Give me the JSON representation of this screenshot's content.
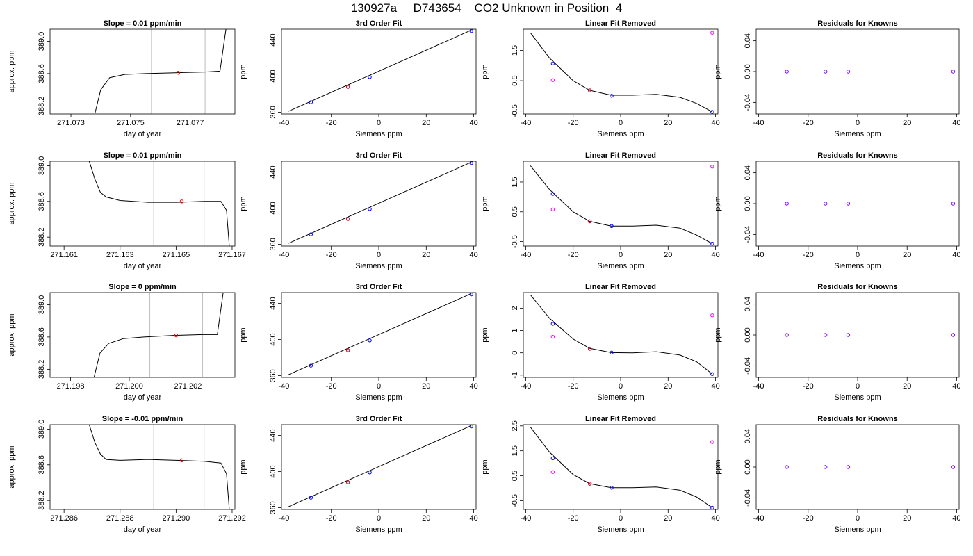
{
  "page_title": "130927a     D743654    CO2 Unknown in Position  4",
  "colors": {
    "trace": "#000000",
    "red_point": "#ff0000",
    "blue_point": "#0000ff",
    "magenta_point": "#ff00ff",
    "purple_point": "#7a00ff",
    "window_line": "#bebebe"
  },
  "chart_data": [
    {
      "type": "line",
      "title": "Slope =  0.01  ppm/min",
      "xlabel": "day of year",
      "ylabel": "approx. ppm",
      "xlim": [
        271.0723,
        271.0785
      ],
      "ylim": [
        388.1,
        389.15
      ],
      "xticks": [
        "271.073",
        "271.075",
        "271.077"
      ],
      "yticks": [
        "388.2",
        "388.6",
        "389.0"
      ],
      "window": [
        271.0757,
        271.0775
      ],
      "series": [
        {
          "x": [
            271.0738,
            271.074,
            271.0743,
            271.0748,
            271.0755,
            271.0765,
            271.0775,
            271.078,
            271.0782
          ],
          "y": [
            388.1,
            388.4,
            388.55,
            388.59,
            388.6,
            388.61,
            388.62,
            388.63,
            389.15
          ]
        }
      ],
      "marker": {
        "x": 271.0766,
        "y": 388.61
      }
    },
    {
      "type": "line",
      "title": "3rd Order Fit",
      "xlabel": "Siemens ppm",
      "ylabel": "ppm",
      "xlim": [
        -41,
        41
      ],
      "ylim": [
        358,
        452
      ],
      "xticks": [
        "-40",
        "-20",
        "0",
        "20",
        "40"
      ],
      "yticks": [
        "360",
        "400",
        "440"
      ],
      "fit": {
        "x": [
          -38,
          39
        ],
        "y": [
          361,
          451
        ]
      },
      "knowns": {
        "x": [
          -28.6,
          -13.0,
          -3.8,
          39.0
        ],
        "y": [
          371,
          388,
          399,
          450
        ]
      },
      "unknown": {
        "x": -13.0,
        "y": 388
      }
    },
    {
      "type": "line",
      "title": "Linear Fit Removed",
      "xlabel": "Siemens ppm",
      "ylabel": "ppm",
      "xlim": [
        -41,
        41
      ],
      "ylim": [
        -0.6,
        2.2
      ],
      "xticks": [
        "-40",
        "-20",
        "0",
        "20",
        "40"
      ],
      "yticks": [
        "-0.5",
        "0.5",
        "1.5"
      ],
      "curve": {
        "x": [
          -38,
          -30,
          -20,
          -13,
          -4,
          5,
          15,
          25,
          32,
          38.6
        ],
        "y": [
          2.08,
          1.25,
          0.5,
          0.18,
          0.02,
          0.02,
          0.05,
          -0.05,
          -0.25,
          -0.53
        ]
      },
      "knowns": {
        "x": [
          -28.6,
          -13.0,
          -3.8,
          38.6
        ],
        "y": [
          1.07,
          0.18,
          0.0,
          -0.53
        ]
      },
      "unknown": {
        "x": -13.0,
        "y": 0.18
      },
      "raw": {
        "x": [
          -28.6,
          38.6
        ],
        "y": [
          0.52,
          2.08
        ]
      }
    },
    {
      "type": "scatter",
      "title": "Residuals for Knowns",
      "xlabel": "Siemens ppm",
      "ylabel": "ppm",
      "xlim": [
        -41,
        41
      ],
      "ylim": [
        -0.055,
        0.055
      ],
      "xticks": [
        "-40",
        "-20",
        "0",
        "20",
        "40"
      ],
      "yticks": [
        "-0.04",
        "0.00",
        "0.04"
      ],
      "points": {
        "x": [
          -28.6,
          -13.0,
          -3.8,
          38.6
        ],
        "y": [
          0,
          0,
          0,
          0
        ]
      }
    },
    {
      "type": "line",
      "title": "Slope =  0.01  ppm/min",
      "xlabel": "day of year",
      "ylabel": "approx. ppm",
      "xlim": [
        271.1605,
        271.1671
      ],
      "ylim": [
        388.1,
        389.05
      ],
      "xticks": [
        "271.161",
        "271.163",
        "271.165",
        "271.167"
      ],
      "yticks": [
        "388.2",
        "388.6",
        "389.0"
      ],
      "window": [
        271.1642,
        271.166
      ],
      "series": [
        {
          "x": [
            271.1619,
            271.1621,
            271.1623,
            271.1625,
            271.163,
            271.164,
            271.165,
            271.166,
            271.1666,
            271.1668,
            271.1669
          ],
          "y": [
            389.05,
            388.85,
            388.7,
            388.65,
            388.61,
            388.59,
            388.59,
            388.6,
            388.6,
            388.5,
            388.1
          ]
        }
      ],
      "marker": {
        "x": 271.1652,
        "y": 388.6
      }
    },
    {
      "type": "line",
      "title": "3rd Order Fit",
      "xlabel": "Siemens ppm",
      "ylabel": "ppm",
      "xlim": [
        -41,
        41
      ],
      "ylim": [
        358,
        452
      ],
      "xticks": [
        "-40",
        "-20",
        "0",
        "20",
        "40"
      ],
      "yticks": [
        "360",
        "400",
        "440"
      ],
      "fit": {
        "x": [
          -38,
          39
        ],
        "y": [
          361,
          451
        ]
      },
      "knowns": {
        "x": [
          -28.6,
          -13.0,
          -3.8,
          39.0
        ],
        "y": [
          371,
          388,
          399,
          450
        ]
      },
      "unknown": {
        "x": -13.0,
        "y": 388
      }
    },
    {
      "type": "line",
      "title": "Linear Fit Removed",
      "xlabel": "Siemens ppm",
      "ylabel": "ppm",
      "xlim": [
        -41,
        41
      ],
      "ylim": [
        -0.65,
        2.2
      ],
      "xticks": [
        "-40",
        "-20",
        "0",
        "20",
        "40"
      ],
      "yticks": [
        "-0.5",
        "0.5",
        "1.5"
      ],
      "curve": {
        "x": [
          -38,
          -30,
          -20,
          -13,
          -4,
          5,
          15,
          25,
          32,
          38.6
        ],
        "y": [
          2.05,
          1.25,
          0.5,
          0.18,
          0.02,
          0.02,
          0.05,
          -0.05,
          -0.28,
          -0.57
        ]
      },
      "knowns": {
        "x": [
          -28.6,
          -13.0,
          -3.8,
          38.6
        ],
        "y": [
          1.1,
          0.18,
          0.02,
          -0.57
        ]
      },
      "unknown": {
        "x": -13.0,
        "y": 0.18
      },
      "raw": {
        "x": [
          -28.6,
          38.6
        ],
        "y": [
          0.58,
          2.02
        ]
      }
    },
    {
      "type": "scatter",
      "title": "Residuals for Knowns",
      "xlabel": "Siemens ppm",
      "ylabel": "ppm",
      "xlim": [
        -41,
        41
      ],
      "ylim": [
        -0.055,
        0.055
      ],
      "xticks": [
        "-40",
        "-20",
        "0",
        "20",
        "40"
      ],
      "yticks": [
        "-0.04",
        "0.00",
        "0.04"
      ],
      "points": {
        "x": [
          -28.6,
          -13.0,
          -3.8,
          38.6
        ],
        "y": [
          0,
          0,
          0,
          0
        ]
      }
    },
    {
      "type": "line",
      "title": "Slope =  0  ppm/min",
      "xlabel": "day of year",
      "ylabel": "approx. ppm",
      "xlim": [
        271.1973,
        271.2036
      ],
      "ylim": [
        388.1,
        389.15
      ],
      "xticks": [
        "271.198",
        "271.200",
        "271.202"
      ],
      "yticks": [
        "388.2",
        "388.6",
        "389.0"
      ],
      "window": [
        271.2007,
        271.2025
      ],
      "series": [
        {
          "x": [
            271.1988,
            271.199,
            271.1993,
            271.1998,
            271.2005,
            271.2015,
            271.2025,
            271.203,
            271.2032
          ],
          "y": [
            388.1,
            388.4,
            388.52,
            388.58,
            388.6,
            388.62,
            388.63,
            388.63,
            389.15
          ]
        }
      ],
      "marker": {
        "x": 271.2016,
        "y": 388.62
      }
    },
    {
      "type": "line",
      "title": "3rd Order Fit",
      "xlabel": "Siemens ppm",
      "ylabel": "ppm",
      "xlim": [
        -41,
        41
      ],
      "ylim": [
        358,
        452
      ],
      "xticks": [
        "-40",
        "-20",
        "0",
        "20",
        "40"
      ],
      "yticks": [
        "360",
        "400",
        "440"
      ],
      "fit": {
        "x": [
          -38,
          39
        ],
        "y": [
          361,
          451
        ]
      },
      "knowns": {
        "x": [
          -28.6,
          -13.0,
          -3.8,
          39.0
        ],
        "y": [
          371,
          388,
          399,
          450
        ]
      },
      "unknown": {
        "x": -13.0,
        "y": 388
      }
    },
    {
      "type": "line",
      "title": "Linear Fit Removed",
      "xlabel": "Siemens ppm",
      "ylabel": "ppm",
      "xlim": [
        -41,
        41
      ],
      "ylim": [
        -1.1,
        2.7
      ],
      "xticks": [
        "-40",
        "-20",
        "0",
        "20",
        "40"
      ],
      "yticks": [
        "-1",
        "0",
        "1",
        "2"
      ],
      "curve": {
        "x": [
          -38,
          -30,
          -20,
          -13,
          -4,
          5,
          15,
          25,
          32,
          38.6
        ],
        "y": [
          2.6,
          1.55,
          0.62,
          0.2,
          0.01,
          0.0,
          0.05,
          -0.1,
          -0.4,
          -0.95
        ]
      },
      "knowns": {
        "x": [
          -28.6,
          -13.0,
          -3.8,
          38.6
        ],
        "y": [
          1.3,
          0.18,
          0.01,
          -0.95
        ]
      },
      "unknown": {
        "x": -13.0,
        "y": 0.18
      },
      "raw": {
        "x": [
          -28.6,
          38.6
        ],
        "y": [
          0.72,
          1.68
        ]
      }
    },
    {
      "type": "scatter",
      "title": "Residuals for Knowns",
      "xlabel": "Siemens ppm",
      "ylabel": "ppm",
      "xlim": [
        -41,
        41
      ],
      "ylim": [
        -0.055,
        0.055
      ],
      "xticks": [
        "-40",
        "-20",
        "0",
        "20",
        "40"
      ],
      "yticks": [
        "-0.04",
        "0.00",
        "0.04"
      ],
      "points": {
        "x": [
          -28.6,
          -13.0,
          -3.8,
          38.6
        ],
        "y": [
          0,
          0,
          0,
          0
        ]
      }
    },
    {
      "type": "line",
      "title": "Slope =  -0.01  ppm/min",
      "xlabel": "day of year",
      "ylabel": "approx. ppm",
      "xlim": [
        271.2855,
        271.2921
      ],
      "ylim": [
        388.1,
        389.05
      ],
      "xticks": [
        "271.286",
        "271.288",
        "271.290",
        "271.292"
      ],
      "yticks": [
        "388.2",
        "388.6",
        "389.0"
      ],
      "window": [
        271.2892,
        271.291
      ],
      "series": [
        {
          "x": [
            271.2869,
            271.2871,
            271.2873,
            271.2875,
            271.288,
            271.289,
            271.29,
            271.291,
            271.2916,
            271.2918,
            271.2919
          ],
          "y": [
            389.05,
            388.85,
            388.72,
            388.66,
            388.65,
            388.66,
            388.65,
            388.64,
            388.62,
            388.5,
            388.1
          ]
        }
      ],
      "marker": {
        "x": 271.2902,
        "y": 388.65
      }
    },
    {
      "type": "line",
      "title": "3rd Order Fit",
      "xlabel": "Siemens ppm",
      "ylabel": "ppm",
      "xlim": [
        -41,
        41
      ],
      "ylim": [
        358,
        452
      ],
      "xticks": [
        "-40",
        "-20",
        "0",
        "20",
        "40"
      ],
      "yticks": [
        "360",
        "400",
        "440"
      ],
      "fit": {
        "x": [
          -38,
          39
        ],
        "y": [
          361,
          451
        ]
      },
      "knowns": {
        "x": [
          -28.6,
          -13.0,
          -3.8,
          39.0
        ],
        "y": [
          371,
          388,
          399,
          450
        ]
      },
      "unknown": {
        "x": -13.0,
        "y": 388
      }
    },
    {
      "type": "line",
      "title": "Linear Fit Removed",
      "xlabel": "Siemens ppm",
      "ylabel": "ppm",
      "xlim": [
        -41,
        41
      ],
      "ylim": [
        -0.85,
        2.55
      ],
      "xticks": [
        "-40",
        "-20",
        "0",
        "20",
        "40"
      ],
      "yticks": [
        "-0.5",
        "0.5",
        "1.5",
        "2.5"
      ],
      "curve": {
        "x": [
          -38,
          -30,
          -20,
          -13,
          -4,
          5,
          15,
          25,
          32,
          38.6
        ],
        "y": [
          2.45,
          1.45,
          0.55,
          0.18,
          0.02,
          0.02,
          0.05,
          -0.08,
          -0.35,
          -0.78
        ]
      },
      "knowns": {
        "x": [
          -28.6,
          -13.0,
          -3.8,
          38.6
        ],
        "y": [
          1.2,
          0.18,
          0.02,
          -0.78
        ]
      },
      "unknown": {
        "x": -13.0,
        "y": 0.18
      },
      "raw": {
        "x": [
          -28.6,
          38.6
        ],
        "y": [
          0.65,
          1.85
        ]
      }
    },
    {
      "type": "scatter",
      "title": "Residuals for Knowns",
      "xlabel": "Siemens ppm",
      "ylabel": "ppm",
      "xlim": [
        -41,
        41
      ],
      "ylim": [
        -0.055,
        0.055
      ],
      "xticks": [
        "-40",
        "-20",
        "0",
        "20",
        "40"
      ],
      "yticks": [
        "-0.04",
        "0.00",
        "0.04"
      ],
      "points": {
        "x": [
          -28.6,
          -13.0,
          -3.8,
          38.6
        ],
        "y": [
          0,
          0,
          0,
          0
        ]
      }
    }
  ]
}
